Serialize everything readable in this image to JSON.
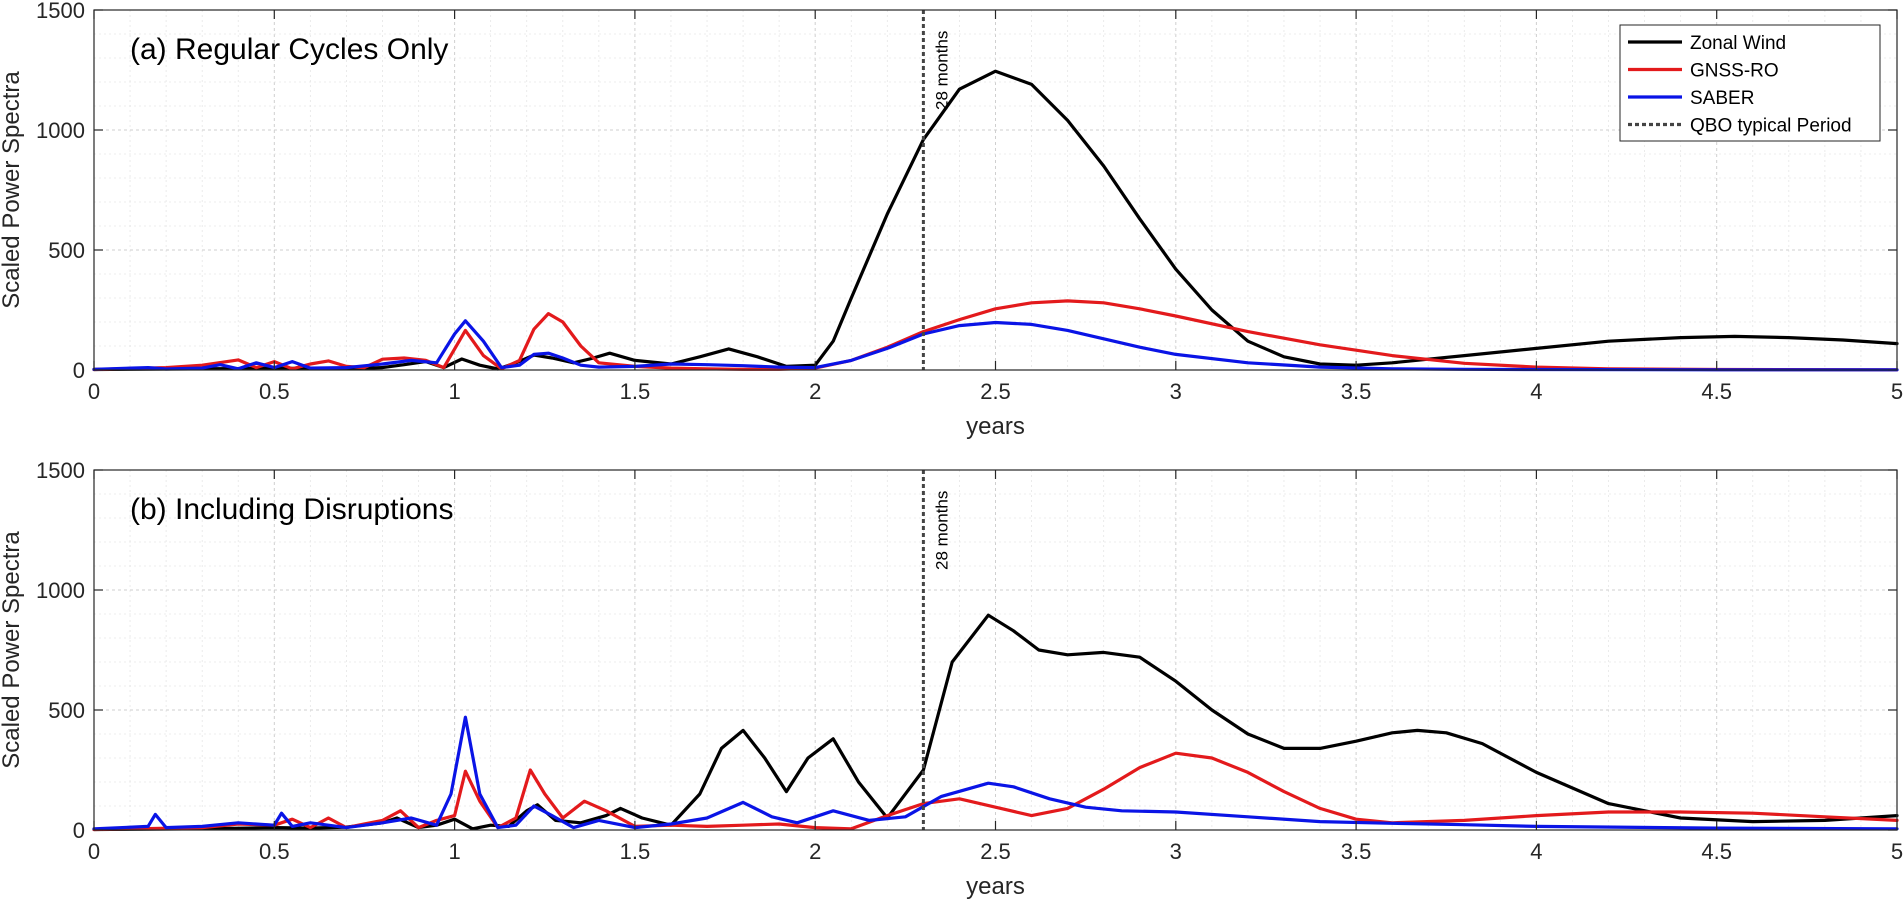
{
  "legend": {
    "entries": [
      {
        "label": "Zonal Wind",
        "color": "#000000",
        "style": "solid"
      },
      {
        "label": "GNSS-RO",
        "color": "#e31a1c",
        "style": "solid"
      },
      {
        "label": "SABER",
        "color": "#0a14e6",
        "style": "solid"
      },
      {
        "label": "QBO typical Period",
        "color": "#444444",
        "style": "dotted"
      }
    ],
    "placement": "top-right"
  },
  "chart_data": [
    {
      "type": "line",
      "title": "(a) Regular Cycles Only",
      "xlabel": "years",
      "ylabel": "Scaled Power Spectra",
      "xlim": [
        0,
        5
      ],
      "ylim": [
        0,
        1500
      ],
      "xticks": [
        "0",
        "0.5",
        "1",
        "1.5",
        "2",
        "2.5",
        "3",
        "3.5",
        "4",
        "4.5",
        "5"
      ],
      "yticks": [
        "0",
        "500",
        "1000",
        "1500"
      ],
      "grid": true,
      "vline": {
        "x": 2.3,
        "label": "28 months"
      },
      "series": [
        {
          "name": "Zonal Wind",
          "color": "#000000",
          "x": [
            0,
            0.2,
            0.4,
            0.5,
            0.6,
            0.7,
            0.8,
            0.86,
            0.92,
            0.97,
            1.02,
            1.07,
            1.12,
            1.17,
            1.22,
            1.27,
            1.33,
            1.38,
            1.43,
            1.5,
            1.6,
            1.68,
            1.76,
            1.84,
            1.92,
            2.0,
            2.05,
            2.1,
            2.2,
            2.3,
            2.4,
            2.5,
            2.6,
            2.7,
            2.8,
            2.9,
            3.0,
            3.1,
            3.2,
            3.3,
            3.4,
            3.5,
            3.6,
            3.7,
            3.8,
            4.0,
            4.2,
            4.4,
            4.55,
            4.7,
            4.85,
            5.0
          ],
          "y": [
            2,
            4,
            6,
            8,
            6,
            5,
            10,
            22,
            35,
            10,
            46,
            20,
            4,
            30,
            62,
            50,
            30,
            48,
            70,
            40,
            25,
            55,
            88,
            55,
            15,
            20,
            120,
            300,
            650,
            960,
            1170,
            1245,
            1190,
            1040,
            850,
            630,
            420,
            250,
            120,
            55,
            25,
            20,
            30,
            45,
            60,
            90,
            120,
            135,
            140,
            135,
            125,
            110
          ]
        },
        {
          "name": "GNSS-RO",
          "color": "#e31a1c",
          "x": [
            0,
            0.2,
            0.3,
            0.4,
            0.45,
            0.5,
            0.55,
            0.6,
            0.65,
            0.7,
            0.75,
            0.8,
            0.86,
            0.92,
            0.97,
            1.03,
            1.08,
            1.13,
            1.18,
            1.22,
            1.26,
            1.3,
            1.35,
            1.4,
            1.5,
            1.6,
            1.7,
            1.8,
            1.9,
            2.0,
            2.1,
            2.2,
            2.3,
            2.4,
            2.5,
            2.6,
            2.7,
            2.8,
            2.9,
            3.0,
            3.2,
            3.4,
            3.6,
            3.8,
            4.0,
            4.2,
            4.5,
            5.0
          ],
          "y": [
            2,
            10,
            20,
            42,
            10,
            35,
            5,
            25,
            38,
            15,
            10,
            45,
            50,
            40,
            10,
            165,
            60,
            5,
            40,
            170,
            235,
            200,
            100,
            30,
            15,
            8,
            5,
            3,
            3,
            8,
            40,
            95,
            160,
            210,
            255,
            280,
            288,
            280,
            255,
            225,
            160,
            105,
            60,
            28,
            12,
            5,
            2,
            1
          ]
        },
        {
          "name": "SABER",
          "color": "#0a14e6",
          "x": [
            0,
            0.15,
            0.2,
            0.3,
            0.35,
            0.4,
            0.45,
            0.5,
            0.55,
            0.6,
            0.7,
            0.8,
            0.88,
            0.95,
            1.0,
            1.03,
            1.08,
            1.13,
            1.18,
            1.22,
            1.26,
            1.3,
            1.35,
            1.4,
            1.5,
            1.6,
            1.7,
            1.8,
            1.9,
            2.0,
            2.1,
            2.2,
            2.3,
            2.4,
            2.5,
            2.6,
            2.7,
            2.8,
            2.9,
            3.0,
            3.2,
            3.4,
            3.6,
            3.8,
            4.0,
            4.5,
            5.0
          ],
          "y": [
            3,
            10,
            4,
            8,
            22,
            5,
            30,
            10,
            35,
            8,
            10,
            25,
            40,
            30,
            150,
            205,
            120,
            10,
            20,
            65,
            70,
            50,
            20,
            12,
            15,
            25,
            22,
            18,
            12,
            10,
            40,
            90,
            150,
            185,
            198,
            190,
            165,
            130,
            95,
            65,
            30,
            12,
            5,
            3,
            2,
            1,
            1
          ]
        }
      ]
    },
    {
      "type": "line",
      "title": "(b) Including Disruptions",
      "xlabel": "years",
      "ylabel": "Scaled Power Spectra",
      "xlim": [
        0,
        5
      ],
      "ylim": [
        0,
        1500
      ],
      "xticks": [
        "0",
        "0.5",
        "1",
        "1.5",
        "2",
        "2.5",
        "3",
        "3.5",
        "4",
        "4.5",
        "5"
      ],
      "yticks": [
        "0",
        "500",
        "1000",
        "1500"
      ],
      "grid": true,
      "vline": {
        "x": 2.3,
        "label": "28 months"
      },
      "series": [
        {
          "name": "Zonal Wind",
          "color": "#000000",
          "x": [
            0,
            0.3,
            0.5,
            0.6,
            0.7,
            0.8,
            0.84,
            0.9,
            0.95,
            1.0,
            1.05,
            1.1,
            1.15,
            1.2,
            1.23,
            1.28,
            1.35,
            1.42,
            1.46,
            1.52,
            1.6,
            1.68,
            1.74,
            1.8,
            1.86,
            1.92,
            1.98,
            2.05,
            2.12,
            2.2,
            2.3,
            2.38,
            2.48,
            2.55,
            2.62,
            2.7,
            2.8,
            2.9,
            3.0,
            3.1,
            3.2,
            3.3,
            3.4,
            3.5,
            3.6,
            3.67,
            3.75,
            3.85,
            4.0,
            4.2,
            4.4,
            4.6,
            4.8,
            5.0
          ],
          "y": [
            2,
            5,
            10,
            8,
            12,
            30,
            50,
            10,
            20,
            45,
            5,
            20,
            15,
            80,
            105,
            40,
            30,
            60,
            90,
            50,
            20,
            150,
            340,
            415,
            300,
            160,
            300,
            380,
            200,
            50,
            250,
            700,
            895,
            830,
            750,
            730,
            740,
            720,
            620,
            500,
            400,
            340,
            340,
            370,
            405,
            415,
            405,
            360,
            240,
            110,
            50,
            35,
            40,
            60
          ]
        },
        {
          "name": "GNSS-RO",
          "color": "#e31a1c",
          "x": [
            0,
            0.3,
            0.4,
            0.5,
            0.55,
            0.6,
            0.65,
            0.7,
            0.75,
            0.8,
            0.85,
            0.9,
            0.95,
            1.0,
            1.03,
            1.07,
            1.12,
            1.17,
            1.21,
            1.25,
            1.3,
            1.36,
            1.42,
            1.5,
            1.6,
            1.7,
            1.8,
            1.9,
            2.0,
            2.1,
            2.2,
            2.3,
            2.4,
            2.5,
            2.6,
            2.7,
            2.8,
            2.9,
            3.0,
            3.1,
            3.2,
            3.3,
            3.4,
            3.5,
            3.6,
            3.8,
            4.0,
            4.2,
            4.4,
            4.6,
            4.8,
            5.0
          ],
          "y": [
            2,
            10,
            25,
            20,
            45,
            10,
            50,
            10,
            25,
            40,
            80,
            10,
            40,
            60,
            245,
            120,
            10,
            50,
            250,
            150,
            50,
            120,
            80,
            15,
            20,
            15,
            20,
            25,
            10,
            5,
            60,
            110,
            130,
            95,
            60,
            90,
            170,
            260,
            320,
            300,
            240,
            160,
            90,
            45,
            30,
            40,
            60,
            75,
            75,
            70,
            55,
            40
          ]
        },
        {
          "name": "SABER",
          "color": "#0a14e6",
          "x": [
            0,
            0.15,
            0.17,
            0.2,
            0.3,
            0.4,
            0.5,
            0.52,
            0.55,
            0.6,
            0.7,
            0.8,
            0.88,
            0.95,
            0.99,
            1.03,
            1.07,
            1.12,
            1.17,
            1.22,
            1.27,
            1.33,
            1.4,
            1.5,
            1.6,
            1.7,
            1.8,
            1.88,
            1.95,
            2.05,
            2.15,
            2.25,
            2.35,
            2.48,
            2.55,
            2.65,
            2.75,
            2.85,
            3.0,
            3.2,
            3.4,
            3.6,
            3.8,
            4.0,
            4.5,
            5.0
          ],
          "y": [
            5,
            15,
            65,
            10,
            15,
            30,
            20,
            70,
            15,
            30,
            10,
            30,
            50,
            20,
            150,
            470,
            150,
            10,
            20,
            100,
            60,
            10,
            40,
            10,
            25,
            50,
            115,
            55,
            30,
            80,
            40,
            55,
            140,
            195,
            180,
            130,
            95,
            80,
            75,
            55,
            35,
            28,
            22,
            15,
            8,
            5
          ]
        }
      ]
    }
  ]
}
